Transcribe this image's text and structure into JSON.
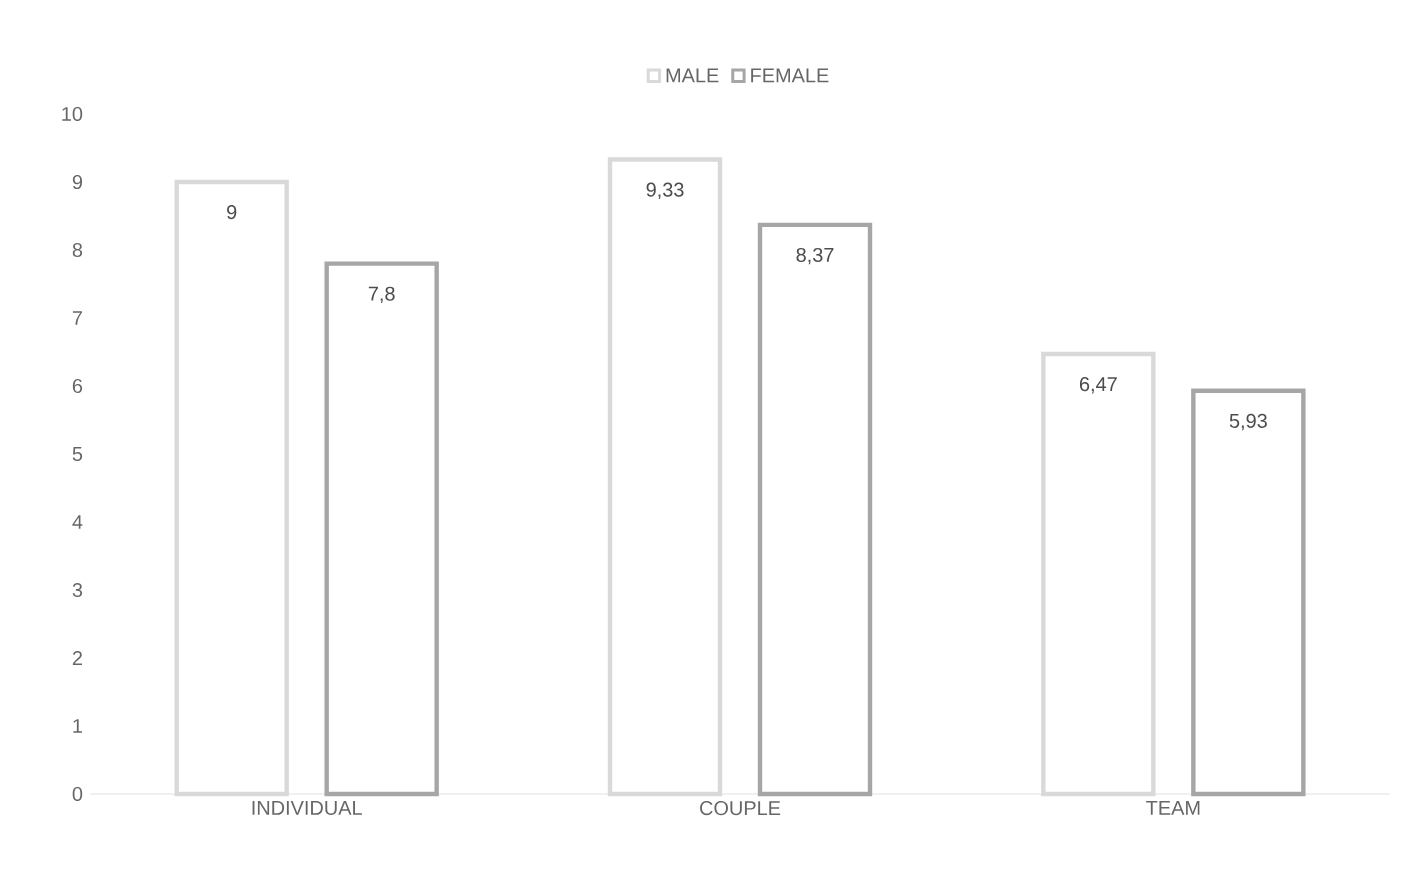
{
  "chart_data": {
    "type": "bar",
    "categories": [
      "INDIVIDUAL",
      "COUPLE",
      "TEAM"
    ],
    "series": [
      {
        "name": "MALE",
        "color": "#d9d9d9",
        "values": [
          9,
          9.33,
          6.47
        ],
        "value_labels": [
          "9",
          "9,33",
          "6,47"
        ]
      },
      {
        "name": "FEMALE",
        "color": "#a6a6a6",
        "values": [
          7.8,
          8.37,
          5.93
        ],
        "value_labels": [
          "7,8",
          "8,37",
          "5,93"
        ]
      }
    ],
    "ylim": [
      0,
      10
    ],
    "yticks": [
      0,
      1,
      2,
      3,
      4,
      5,
      6,
      7,
      8,
      9,
      10
    ],
    "grid": false,
    "legend": "top"
  }
}
